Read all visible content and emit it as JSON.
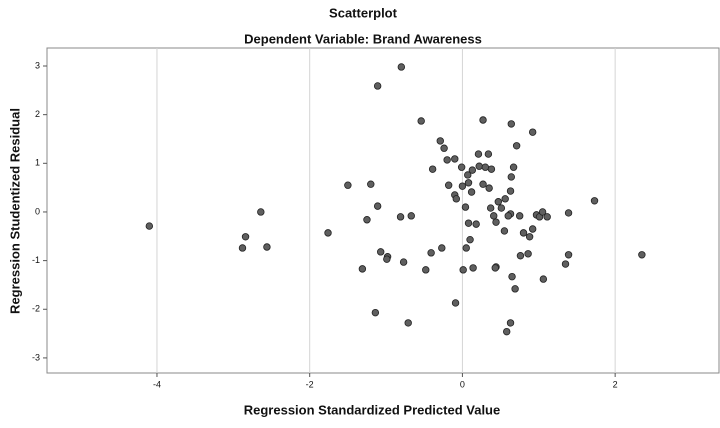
{
  "chart_data": {
    "type": "scatter",
    "title": "Scatterplot",
    "subtitle": "Dependent Variable: Brand Awareness",
    "x_label": "Regression Standardized Predicted Value",
    "y_label": "Regression Studentized Residual",
    "xlim": [
      -5.44,
      3.36
    ],
    "ylim": [
      -3.31,
      3.37
    ],
    "xticks": [
      -4,
      -2,
      0,
      2
    ],
    "yticks": [
      -3,
      -2,
      -1,
      0,
      1,
      2,
      3
    ],
    "grid": true,
    "color": "#5f5f5f",
    "x": [
      -4.1,
      -2.84,
      -2.64,
      -2.88,
      -2.56,
      -1.76,
      -1.5,
      -1.2,
      -1.11,
      -0.8,
      -1.25,
      -1.11,
      -1.07,
      -1.31,
      -0.98,
      -0.99,
      -0.81,
      -0.67,
      -0.77,
      -1.14,
      -0.71,
      -0.54,
      -0.48,
      -0.41,
      -0.39,
      -0.27,
      -0.29,
      -0.24,
      -0.2,
      -0.18,
      -0.1,
      -0.1,
      -0.08,
      -0.09,
      -0.01,
      0.0,
      0.04,
      0.07,
      0.01,
      0.05,
      0.08,
      0.13,
      0.12,
      0.18,
      0.14,
      0.08,
      0.1,
      0.22,
      0.21,
      0.27,
      0.3,
      0.27,
      0.34,
      0.35,
      0.37,
      0.38,
      0.41,
      0.44,
      0.44,
      0.43,
      0.47,
      0.51,
      0.55,
      0.56,
      0.63,
      0.63,
      0.6,
      0.64,
      0.67,
      0.64,
      0.71,
      0.65,
      0.69,
      0.63,
      0.58,
      0.75,
      0.8,
      0.88,
      0.86,
      0.76,
      0.92,
      0.92,
      0.97,
      1.01,
      1.05,
      1.11,
      1.06,
      1.39,
      1.39,
      1.35,
      1.73,
      2.35
    ],
    "y": [
      -0.29,
      -0.51,
      0.0,
      -0.74,
      -0.72,
      -0.43,
      0.55,
      0.57,
      2.59,
      2.98,
      -0.16,
      0.12,
      -0.82,
      -1.17,
      -0.92,
      -0.97,
      -0.1,
      -0.08,
      -1.03,
      -2.07,
      -2.28,
      1.87,
      -1.19,
      -0.84,
      0.88,
      -0.74,
      1.46,
      1.31,
      1.07,
      0.55,
      1.09,
      0.35,
      0.27,
      -1.87,
      0.92,
      0.53,
      0.1,
      0.76,
      -1.19,
      -0.74,
      0.6,
      0.86,
      0.41,
      -0.25,
      -1.15,
      -0.23,
      -0.57,
      0.94,
      1.19,
      0.57,
      0.92,
      1.89,
      1.19,
      0.49,
      0.08,
      0.88,
      -0.08,
      -1.13,
      -0.21,
      -1.15,
      0.21,
      0.08,
      -0.39,
      0.27,
      -0.04,
      0.43,
      -0.08,
      0.72,
      0.92,
      1.81,
      1.36,
      -1.33,
      -1.58,
      -2.28,
      -2.46,
      -0.08,
      -0.43,
      -0.51,
      -0.86,
      -0.9,
      -0.35,
      1.64,
      -0.06,
      -0.1,
      0.0,
      -0.1,
      -1.38,
      -0.02,
      -0.88,
      -1.07,
      0.23,
      -0.88
    ]
  }
}
